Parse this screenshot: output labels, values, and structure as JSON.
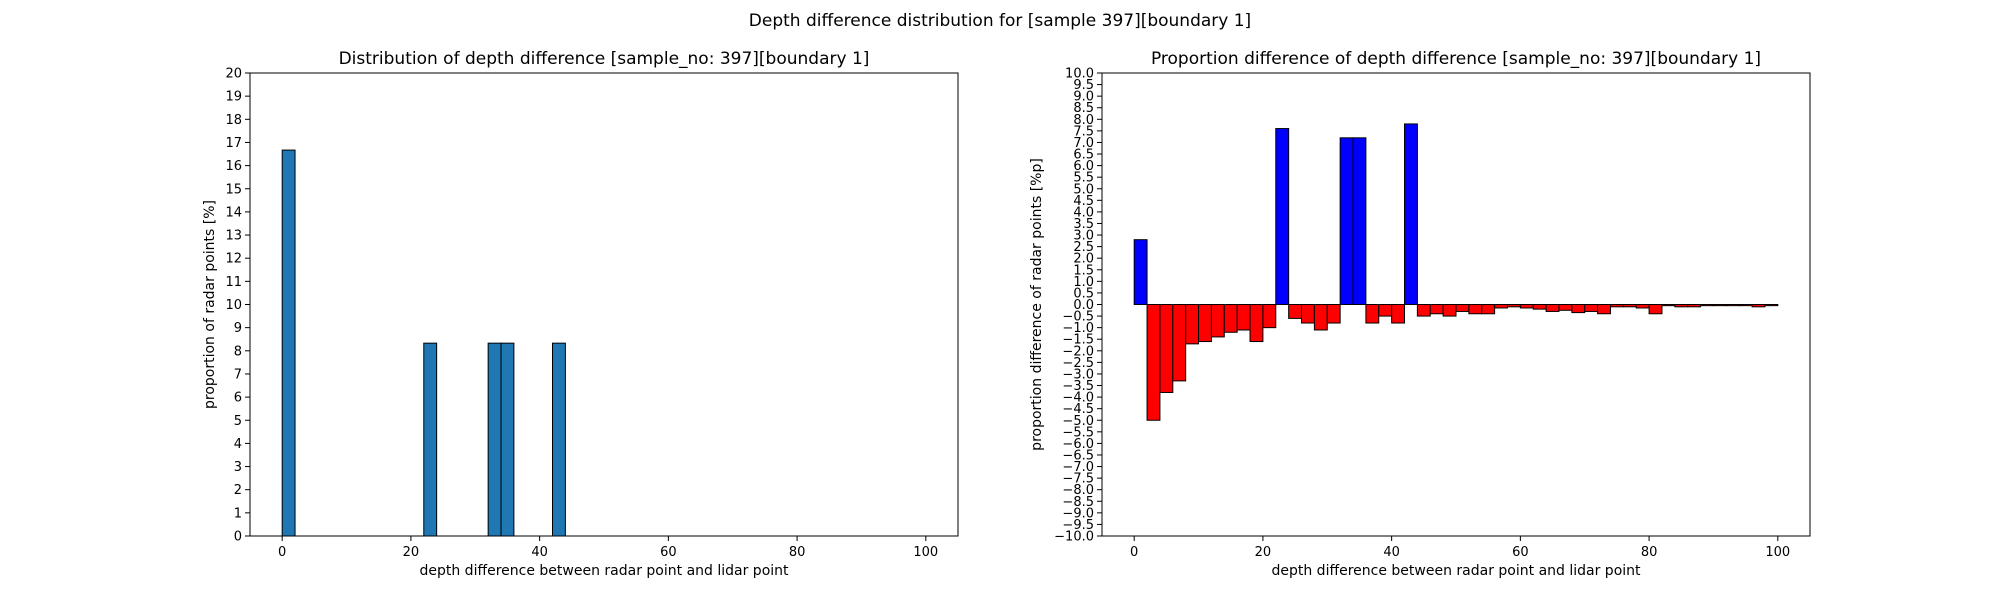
{
  "figure_title": "Depth difference distribution for [sample 397][boundary 1]",
  "chart_data": [
    {
      "type": "bar",
      "title": "Distribution of depth difference [sample_no: 397][boundary 1]",
      "xlabel": "depth difference between radar point and lidar point",
      "ylabel": "proportion of radar points [%]",
      "xlim": [
        -5,
        105
      ],
      "ylim": [
        0,
        20
      ],
      "xticks": [
        0,
        20,
        40,
        60,
        80,
        100
      ],
      "yticks": [
        0,
        1,
        2,
        3,
        4,
        5,
        6,
        7,
        8,
        9,
        10,
        11,
        12,
        13,
        14,
        15,
        16,
        17,
        18,
        19,
        20
      ],
      "bar_width": 2,
      "bar_color": "#1f77b4",
      "edge_color": "#000000",
      "grid": false,
      "bins": [
        1,
        23,
        33,
        35,
        43
      ],
      "values": [
        16.67,
        8.33,
        8.33,
        8.33,
        8.33
      ]
    },
    {
      "type": "bar",
      "title": "Proportion difference of depth difference [sample_no: 397][boundary 1]",
      "xlabel": "depth difference between radar point and lidar point",
      "ylabel": "proportion difference of radar points [%p]",
      "xlim": [
        -5,
        105
      ],
      "ylim": [
        -10,
        10
      ],
      "xticks": [
        0,
        20,
        40,
        60,
        80,
        100
      ],
      "yticks": [
        -10.0,
        -9.5,
        -9.0,
        -8.5,
        -8.0,
        -7.5,
        -7.0,
        -6.5,
        -6.0,
        -5.5,
        -5.0,
        -4.5,
        -4.0,
        -3.5,
        -3.0,
        -2.5,
        -2.0,
        -1.5,
        -1.0,
        -0.5,
        0.0,
        0.5,
        1.0,
        1.5,
        2.0,
        2.5,
        3.0,
        3.5,
        4.0,
        4.5,
        5.0,
        5.5,
        6.0,
        6.5,
        7.0,
        7.5,
        8.0,
        8.5,
        9.0,
        9.5,
        10.0
      ],
      "bar_width": 2,
      "positive_color": "#0000ff",
      "negative_color": "#ff0000",
      "edge_color": "#000000",
      "grid": false,
      "bins": [
        1,
        3,
        5,
        7,
        9,
        11,
        13,
        15,
        17,
        19,
        21,
        23,
        25,
        27,
        29,
        31,
        33,
        35,
        37,
        39,
        41,
        43,
        45,
        47,
        49,
        51,
        53,
        55,
        57,
        59,
        61,
        63,
        65,
        67,
        69,
        71,
        73,
        75,
        77,
        79,
        81,
        83,
        85,
        87,
        89,
        91,
        93,
        95,
        97,
        99
      ],
      "values": [
        2.8,
        -5.0,
        -3.8,
        -3.3,
        -1.7,
        -1.6,
        -1.4,
        -1.2,
        -1.1,
        -1.6,
        -1.0,
        7.6,
        -0.6,
        -0.8,
        -1.1,
        -0.8,
        7.2,
        7.2,
        -0.8,
        -0.5,
        -0.8,
        7.8,
        -0.5,
        -0.4,
        -0.5,
        -0.3,
        -0.4,
        -0.4,
        -0.15,
        -0.1,
        -0.15,
        -0.2,
        -0.3,
        -0.25,
        -0.35,
        -0.3,
        -0.4,
        -0.1,
        -0.1,
        -0.15,
        -0.4,
        -0.05,
        -0.1,
        -0.1,
        -0.05,
        -0.05,
        -0.05,
        -0.05,
        -0.1,
        -0.05
      ]
    }
  ]
}
